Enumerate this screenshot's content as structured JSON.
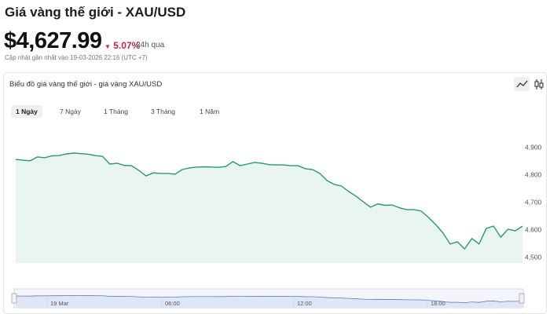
{
  "header": {
    "title": "Giá vàng thế giới - XAU/USD",
    "price": "$4,627.99",
    "change": "5.07%",
    "period": "24h qua",
    "updated": "Cập nhật gần nhất vào 19-03-2026 22:16 (UTC +7)"
  },
  "chart_data": {
    "type": "line",
    "title": "Biểu đồ giá vàng thế giới - giá vàng XAU/USD",
    "tabs": [
      "1 Ngày",
      "7 Ngày",
      "1 Tháng",
      "3 Tháng",
      "1 Năm"
    ],
    "values": [
      4857,
      4854,
      4852,
      4866,
      4863,
      4870,
      4871,
      4877,
      4880,
      4878,
      4876,
      4871,
      4868,
      4840,
      4843,
      4835,
      4834,
      4817,
      4797,
      4808,
      4806,
      4806,
      4803,
      4820,
      4826,
      4829,
      4830,
      4829,
      4828,
      4831,
      4849,
      4834,
      4840,
      4846,
      4843,
      4838,
      4837,
      4837,
      4834,
      4834,
      4823,
      4820,
      4806,
      4780,
      4766,
      4760,
      4740,
      4723,
      4703,
      4683,
      4695,
      4690,
      4691,
      4681,
      4674,
      4674,
      4669,
      4646,
      4620,
      4590,
      4549,
      4557,
      4531,
      4569,
      4549,
      4606,
      4614,
      4574,
      4603,
      4597,
      4614
    ],
    "color": "#2a9a6a",
    "ylim": [
      4480,
      4980
    ],
    "yticks": [
      {
        "value": 4900,
        "label": "4,900"
      },
      {
        "value": 4800,
        "label": "4,800"
      },
      {
        "value": 4700,
        "label": "4,700"
      },
      {
        "value": 4600,
        "label": "4,600"
      },
      {
        "value": 4500,
        "label": "4,500"
      }
    ],
    "navigator_labels": [
      "19 Mar",
      "06:00",
      "12:00",
      "18:00"
    ]
  }
}
